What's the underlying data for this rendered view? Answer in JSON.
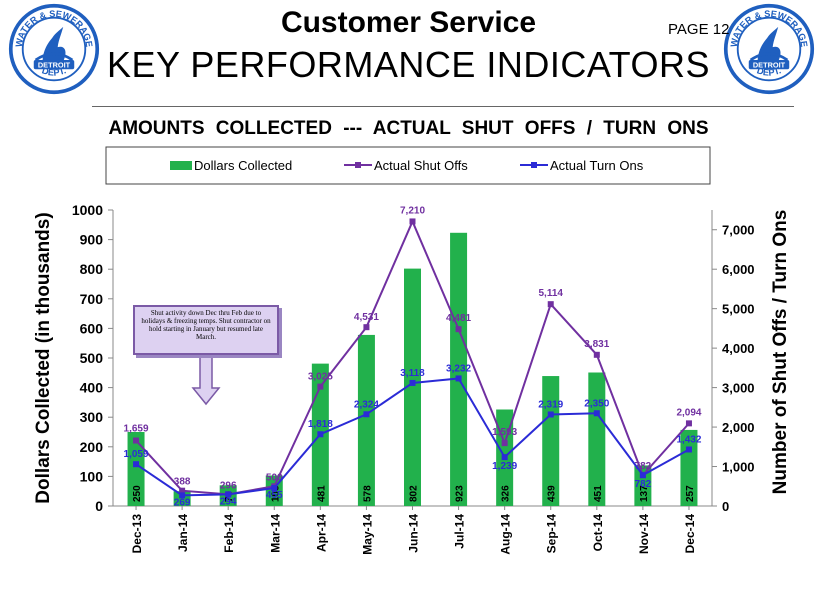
{
  "header": {
    "title": "Customer Service",
    "subtitle": "KEY PERFORMANCE INDICATORS",
    "page_label": "PAGE 12",
    "logo_top_text": "WATER & SEWERAGE",
    "logo_middle_text": "DETROIT",
    "logo_bottom_text": "DEPT."
  },
  "chart_title": "AMOUNTS  COLLECTED  ---  ACTUAL  SHUT  OFFS / TURN  ONS",
  "annotation": "Shut  activity down Dec thru Feb due to holidays & freezing temps. Shut contractor on hold starting in January but resumed late March.",
  "colors": {
    "bar": "#22b14c",
    "shut_offs": "#7030a0",
    "turn_ons": "#2b2bd6",
    "annotation_fill": "#ddd1f1",
    "annotation_border": "#7b5aa6"
  },
  "chart_data": {
    "type": "bar",
    "categories": [
      "Dec-13",
      "Jan-14",
      "Feb-14",
      "Mar-14",
      "Apr-14",
      "May-14",
      "Jun-14",
      "Jul-14",
      "Aug-14",
      "Sep-14",
      "Oct-14",
      "Nov-14",
      "Dec-14"
    ],
    "ylabel": "Dollars  Collected  (in thousands)",
    "y2label": "Number  of  Shut  Offs / Turn Ons",
    "ylim": [
      0,
      1000
    ],
    "y2lim": [
      0,
      7500
    ],
    "yticks": [
      0,
      100,
      200,
      300,
      400,
      500,
      600,
      700,
      800,
      900,
      1000
    ],
    "y2ticks": [
      0,
      1000,
      2000,
      3000,
      4000,
      5000,
      6000,
      7000
    ],
    "y2tick_labels": [
      "0",
      "1,000",
      "2,000",
      "3,000",
      "4,000",
      "5,000",
      "6,000",
      "7,000"
    ],
    "legend_position": "top",
    "series": [
      {
        "name": "Dollars Collected",
        "type": "bar",
        "axis": "left",
        "values": [
          250,
          50,
          70,
          103,
          481,
          578,
          802,
          923,
          326,
          439,
          451,
          137,
          257
        ],
        "labels": [
          "250",
          "",
          "70",
          "103",
          "481",
          "578",
          "802",
          "923",
          "326",
          "439",
          "451",
          "137",
          "257"
        ]
      },
      {
        "name": "Actual Shut Offs",
        "type": "line",
        "axis": "right",
        "values": [
          1659,
          388,
          296,
          500,
          3025,
          4531,
          7210,
          4481,
          1593,
          5114,
          3831,
          782,
          2094
        ],
        "labels": [
          "1,659",
          "388",
          "296",
          "500",
          "3,025",
          "4,531",
          "7,210",
          "4,481",
          "1,593",
          "5,114",
          "3,831",
          "782",
          "2,094"
        ]
      },
      {
        "name": "Actual Turn Ons",
        "type": "line",
        "axis": "right",
        "values": [
          1059,
          269,
          294,
          455,
          1818,
          2324,
          3118,
          3232,
          1239,
          2319,
          2350,
          782,
          1432
        ],
        "labels": [
          "1,059",
          "269",
          "294",
          "455",
          "1,818",
          "2,324",
          "3,118",
          "3,232",
          "1,239",
          "2,319",
          "2,350",
          "782",
          "1,432"
        ]
      }
    ]
  }
}
